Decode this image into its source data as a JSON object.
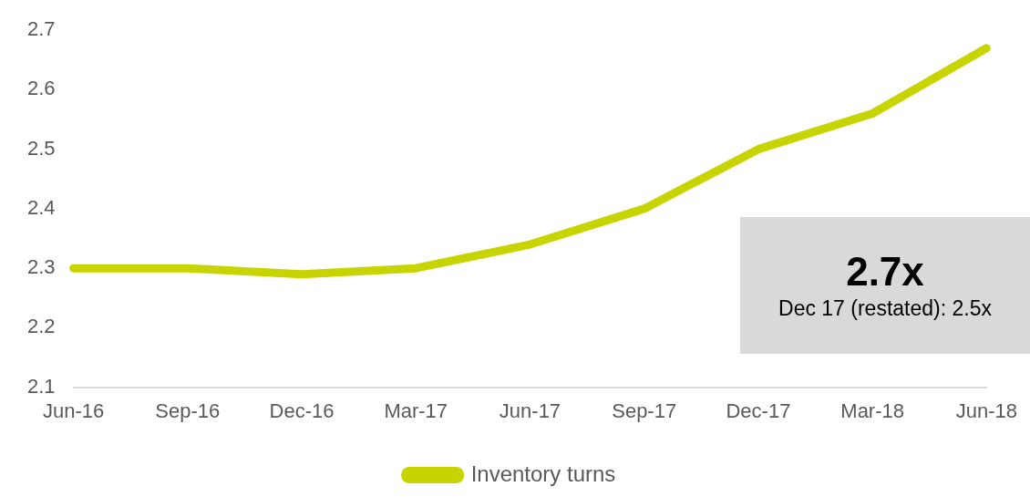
{
  "chart_data": {
    "type": "line",
    "categories": [
      "Jun-16",
      "Sep-16",
      "Dec-16",
      "Mar-17",
      "Jun-17",
      "Sep-17",
      "Dec-17",
      "Mar-18",
      "Jun-18"
    ],
    "series": [
      {
        "name": "Inventory turns",
        "color": "#c8d400",
        "values": [
          2.3,
          2.3,
          2.29,
          2.3,
          2.34,
          2.4,
          2.5,
          2.56,
          2.67
        ]
      }
    ],
    "ylim": [
      2.1,
      2.7
    ],
    "yticks": [
      2.1,
      2.2,
      2.3,
      2.4,
      2.5,
      2.6,
      2.7
    ],
    "grid": false,
    "legend": "bottom",
    "marker": "none",
    "line_style": "solid",
    "annotations": [
      "2.7x",
      "Dec 17 (restated): 2.5x"
    ]
  }
}
